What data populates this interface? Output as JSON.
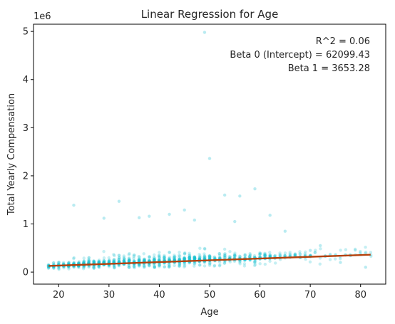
{
  "chart_data": {
    "type": "scatter",
    "title": "Linear Regression for Age",
    "xlabel": "Age",
    "ylabel": "Total Yearly Compensation",
    "y_offset_label": "1e6",
    "xlim": [
      15,
      85
    ],
    "ylim": [
      -0.25,
      5.15
    ],
    "x_ticks": [
      20,
      30,
      40,
      50,
      60,
      70,
      80
    ],
    "y_ticks": [
      0,
      1,
      2,
      3,
      4,
      5
    ],
    "grid": false,
    "annotations": [
      "R^2 = 0.06",
      "Beta 0 (Intercept) = 62099.43",
      "Beta 1 = 3653.28"
    ],
    "colors": {
      "points": "#17becf",
      "regression_line": "#b5410c",
      "axes": "#000000"
    },
    "series": [
      {
        "kind": "scatter",
        "x_range": [
          18,
          82
        ],
        "outliers": [
          {
            "x": 49,
            "y": 4.98
          },
          {
            "x": 50,
            "y": 2.36
          },
          {
            "x": 53,
            "y": 1.6
          },
          {
            "x": 56,
            "y": 1.58
          },
          {
            "x": 59,
            "y": 1.73
          },
          {
            "x": 23,
            "y": 1.39
          },
          {
            "x": 32,
            "y": 1.47
          },
          {
            "x": 45,
            "y": 1.29
          },
          {
            "x": 36,
            "y": 1.13
          },
          {
            "x": 42,
            "y": 1.2
          },
          {
            "x": 29,
            "y": 1.12
          },
          {
            "x": 55,
            "y": 1.05
          },
          {
            "x": 62,
            "y": 1.18
          },
          {
            "x": 47,
            "y": 1.08
          },
          {
            "x": 38,
            "y": 1.16
          },
          {
            "x": 72,
            "y": 0.55
          },
          {
            "x": 76,
            "y": 0.2
          },
          {
            "x": 81,
            "y": 0.1
          },
          {
            "x": 70,
            "y": 0.45
          },
          {
            "x": 65,
            "y": 0.85
          }
        ]
      },
      {
        "kind": "line",
        "x": [
          18,
          82
        ],
        "y": [
          0.1279,
          0.3617
        ]
      }
    ]
  }
}
